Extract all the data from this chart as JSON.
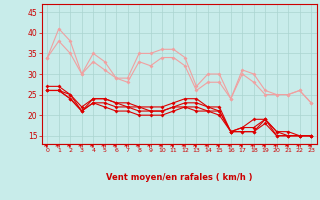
{
  "x": [
    0,
    1,
    2,
    3,
    4,
    5,
    6,
    7,
    8,
    9,
    10,
    11,
    12,
    13,
    14,
    15,
    16,
    17,
    18,
    19,
    20,
    21,
    22,
    23
  ],
  "lines_light": [
    [
      34,
      41,
      38,
      30,
      35,
      33,
      29,
      29,
      35,
      35,
      36,
      36,
      34,
      27,
      30,
      30,
      24,
      31,
      30,
      26,
      25,
      25,
      26,
      23
    ],
    [
      34,
      38,
      35,
      30,
      33,
      31,
      29,
      28,
      33,
      32,
      34,
      34,
      32,
      26,
      28,
      28,
      24,
      30,
      28,
      25,
      25,
      25,
      26,
      23
    ]
  ],
  "lines_dark": [
    [
      27,
      27,
      25,
      22,
      24,
      24,
      23,
      23,
      22,
      22,
      22,
      23,
      24,
      24,
      22,
      22,
      16,
      17,
      19,
      19,
      16,
      15,
      15,
      15
    ],
    [
      26,
      26,
      25,
      21,
      24,
      24,
      23,
      22,
      22,
      21,
      21,
      22,
      23,
      23,
      22,
      21,
      16,
      17,
      17,
      19,
      16,
      16,
      15,
      15
    ],
    [
      26,
      26,
      24,
      21,
      23,
      23,
      22,
      22,
      21,
      21,
      21,
      22,
      22,
      22,
      21,
      21,
      16,
      16,
      16,
      19,
      15,
      15,
      15,
      15
    ],
    [
      26,
      26,
      24,
      21,
      23,
      22,
      21,
      21,
      20,
      20,
      20,
      21,
      22,
      21,
      21,
      20,
      16,
      16,
      16,
      18,
      15,
      15,
      15,
      15
    ]
  ],
  "color_light": "#f0a0a0",
  "color_dark": "#dd0000",
  "bg_color": "#c8ecea",
  "grid_color": "#aad4d0",
  "axis_color": "#cc0000",
  "xlabel": "Vent moyen/en rafales ( km/h )",
  "ylim": [
    13,
    47
  ],
  "yticks": [
    15,
    20,
    25,
    30,
    35,
    40,
    45
  ],
  "xlim": [
    -0.5,
    23.5
  ],
  "xticks": [
    0,
    1,
    2,
    3,
    4,
    5,
    6,
    7,
    8,
    9,
    10,
    11,
    12,
    13,
    14,
    15,
    16,
    17,
    18,
    19,
    20,
    21,
    22,
    23
  ]
}
